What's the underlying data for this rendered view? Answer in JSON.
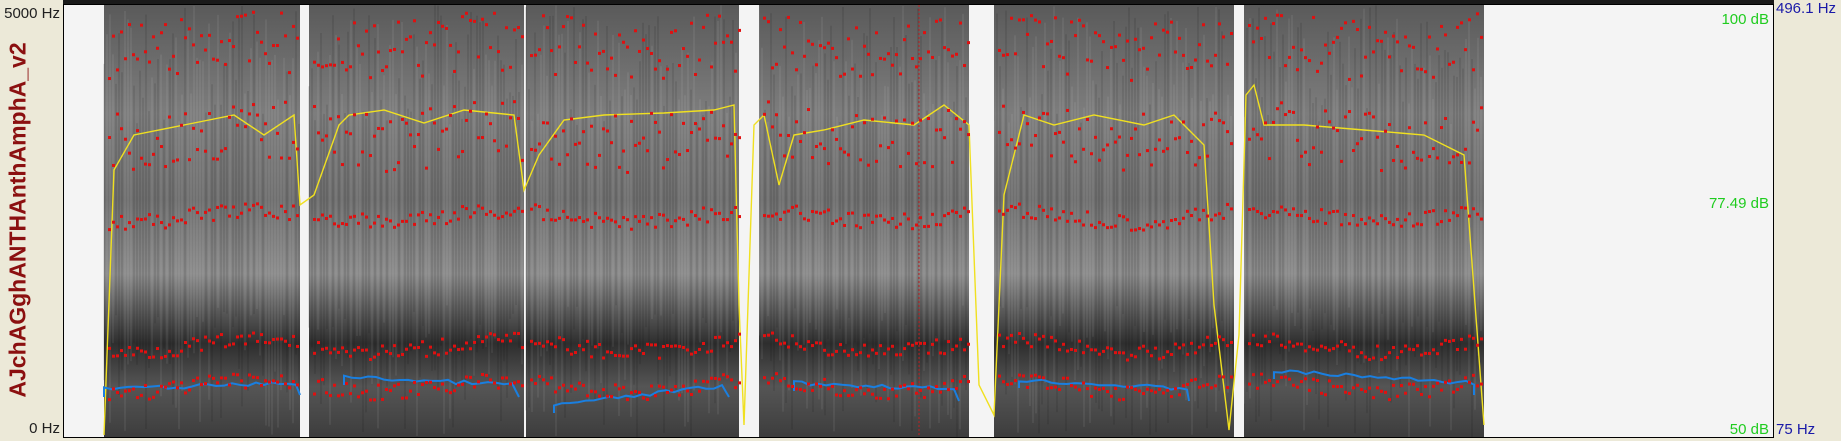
{
  "tier_name": "AJchAGghANTHAnthAmphA_v2",
  "frequency_axis": {
    "top": "5000 Hz",
    "bottom": "0 Hz"
  },
  "intensity_axis": {
    "top": "100 dB",
    "middle": "77.49 dB",
    "bottom": "50 dB"
  },
  "pitch_axis": {
    "top": "496.1 Hz",
    "bottom": "75 Hz"
  },
  "colors": {
    "background": "#ece9d8",
    "formant": "#e01010",
    "intensity": "#f0e020",
    "pitch": "#1a7fe0",
    "db_label": "#1fcc1f",
    "pitch_label": "#1a1aa8",
    "title": "#8b1010"
  }
}
